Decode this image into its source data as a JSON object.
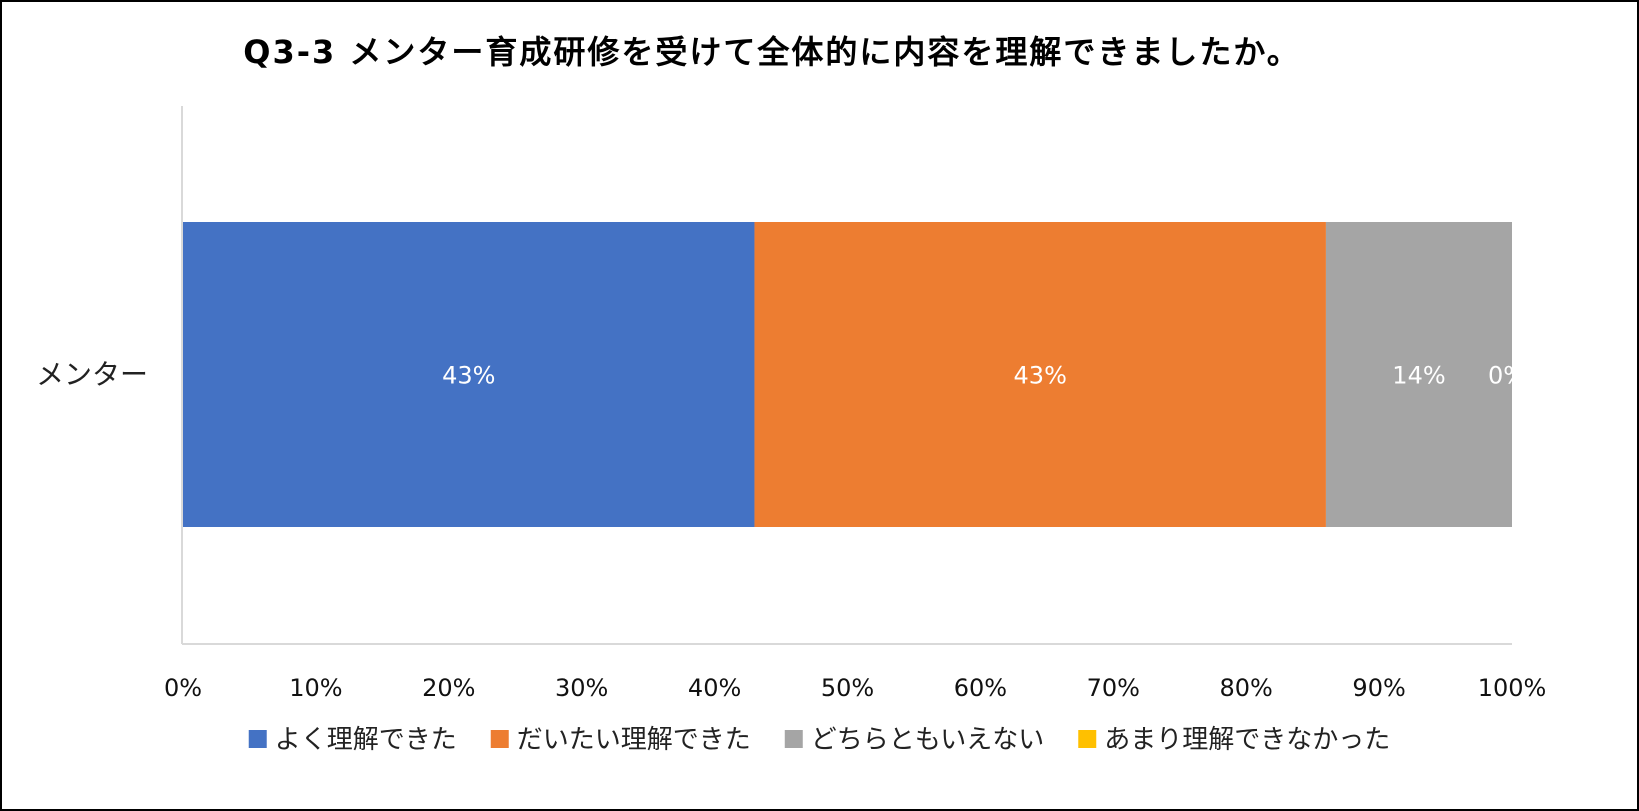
{
  "chart_data": {
    "type": "bar",
    "orientation": "horizontal",
    "stacked": "100%",
    "title": "Q3-3 メンター育成研修を受けて全体的に内容を理解できましたか。",
    "categories": [
      "メンター"
    ],
    "series": [
      {
        "name": "よく理解できた",
        "values": [
          43
        ],
        "label": "43%",
        "color": "#4472C4"
      },
      {
        "name": "だいたい理解できた",
        "values": [
          43
        ],
        "label": "43%",
        "color": "#ED7D31"
      },
      {
        "name": "どちらともいえない",
        "values": [
          14
        ],
        "label": "14%",
        "color": "#A5A5A5"
      },
      {
        "name": "あまり理解できなかった",
        "values": [
          0
        ],
        "label": "0%",
        "color": "#FFC000"
      }
    ],
    "xlim": [
      0,
      100
    ],
    "x_ticks": [
      "0%",
      "10%",
      "20%",
      "30%",
      "40%",
      "50%",
      "60%",
      "70%",
      "80%",
      "90%",
      "100%"
    ],
    "grid": false,
    "legend_position": "bottom"
  }
}
